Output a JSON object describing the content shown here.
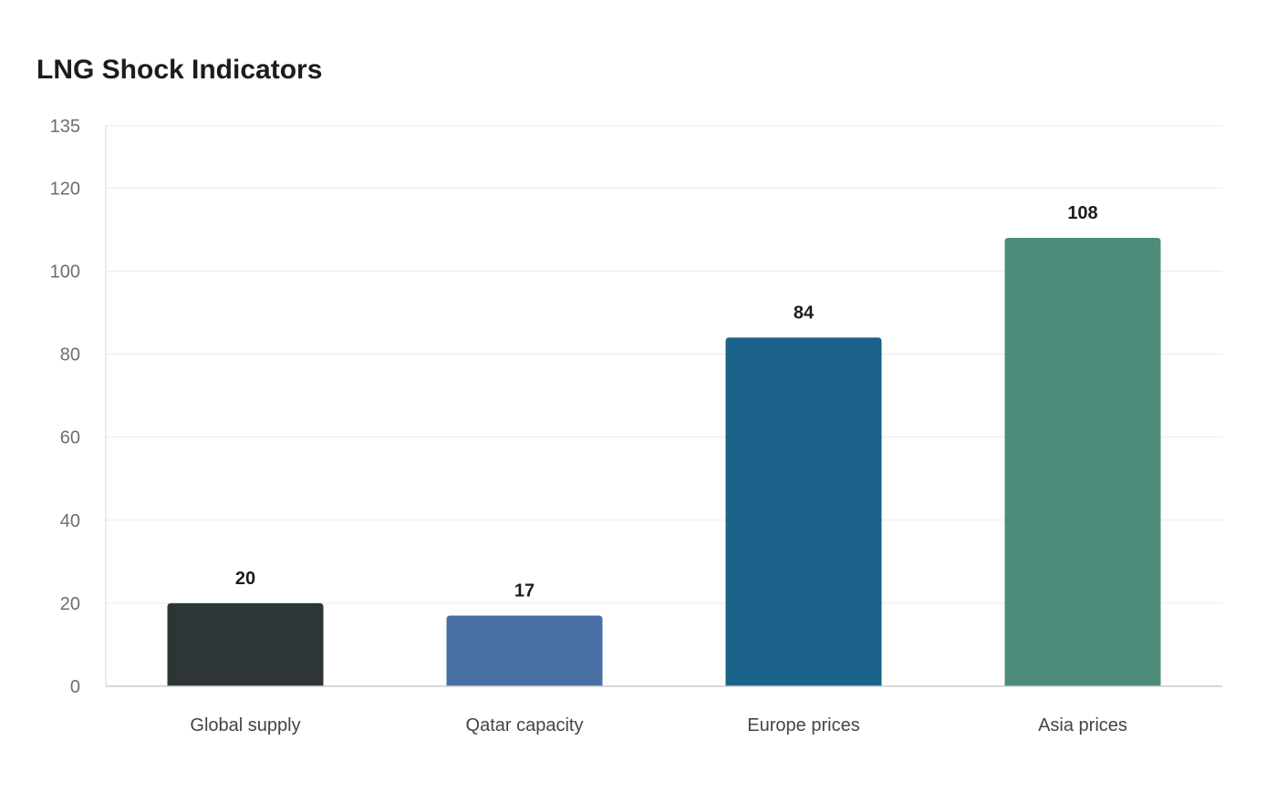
{
  "chart_data": {
    "type": "bar",
    "title": "LNG Shock Indicators",
    "xlabel": "",
    "ylabel": "",
    "categories": [
      "Global supply",
      "Qatar capacity",
      "Europe prices",
      "Asia prices"
    ],
    "values": [
      20,
      17,
      84,
      108
    ],
    "colors": [
      "#2d3537",
      "#4a6fa5",
      "#1a6289",
      "#4d8c7a"
    ],
    "ylim": [
      0,
      135
    ],
    "yticks": [
      0,
      20,
      40,
      60,
      80,
      100,
      120,
      135
    ],
    "grid": true,
    "legend": "none",
    "data_labels": true
  }
}
